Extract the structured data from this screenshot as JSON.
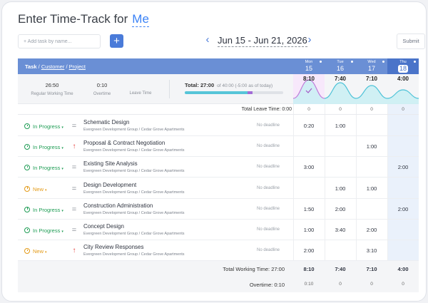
{
  "header": {
    "title": "Enter Time-Track for",
    "user": "Me"
  },
  "toolbar": {
    "add_placeholder": "+ Add task by name...",
    "add_button": "+",
    "prev": "‹",
    "next": "›",
    "date_range": "Jun 15 - Jun 21, 2026",
    "submit": "Submit"
  },
  "table_header": {
    "task": "Task",
    "sep": "/",
    "customer": "Customer",
    "project": "Project"
  },
  "days": [
    {
      "name": "Mon",
      "date": "15",
      "today": false
    },
    {
      "name": "Tue",
      "date": "16",
      "today": false
    },
    {
      "name": "Wed",
      "date": "17",
      "today": false
    },
    {
      "name": "Thu",
      "date": "18",
      "today": true
    }
  ],
  "summary": {
    "regular_value": "26:50",
    "regular_label": "Regular Working Time",
    "overtime_value": "0:10",
    "overtime_label": "Overtime",
    "leave_value": "",
    "leave_label": "Leave Time",
    "total_label": "Total: 27:00",
    "total_sub": "of 40:00 (-5:00 as of today)",
    "progress_primary": 0.64,
    "progress_secondary": 0.05,
    "day_totals": [
      "8:10",
      "7:40",
      "7:10",
      "4:00"
    ]
  },
  "leave_row": {
    "label": "Total Leave Time: 0:00",
    "values": [
      "0",
      "0",
      "0",
      "0"
    ]
  },
  "tasks": [
    {
      "status": "In Progress",
      "status_type": "prog",
      "priority": "=",
      "priority_type": "eq",
      "name": "Schematic Design",
      "project": "Evergreen Development Group / Cedar Grove Apartments",
      "deadline": "No deadline",
      "times": [
        "0:20",
        "1:00",
        "",
        ""
      ]
    },
    {
      "status": "In Progress",
      "status_type": "prog",
      "priority": "↑",
      "priority_type": "up",
      "name": "Proposal & Contract Negotiation",
      "project": "Evergreen Development Group / Cedar Grove Apartments",
      "deadline": "No deadline",
      "times": [
        "",
        "",
        "1:00",
        ""
      ]
    },
    {
      "status": "In Progress",
      "status_type": "prog",
      "priority": "=",
      "priority_type": "eq",
      "name": "Existing Site Analysis",
      "project": "Evergreen Development Group / Cedar Grove Apartments",
      "deadline": "No deadline",
      "times": [
        "3:00",
        "",
        "",
        "2:00"
      ]
    },
    {
      "status": "New",
      "status_type": "new",
      "priority": "=",
      "priority_type": "eq",
      "name": "Design Development",
      "project": "Evergreen Development Group / Cedar Grove Apartments",
      "deadline": "No deadline",
      "times": [
        "",
        "1:00",
        "1:00",
        ""
      ]
    },
    {
      "status": "In Progress",
      "status_type": "prog",
      "priority": "=",
      "priority_type": "eq",
      "name": "Construction Administration",
      "project": "Evergreen Development Group / Cedar Grove Apartments",
      "deadline": "No deadline",
      "times": [
        "1:50",
        "2:00",
        "",
        "2:00"
      ]
    },
    {
      "status": "In Progress",
      "status_type": "prog",
      "priority": "=",
      "priority_type": "eq",
      "name": "Concept Design",
      "project": "Evergreen Development Group / Cedar Grove Apartments",
      "deadline": "No deadline",
      "times": [
        "1:00",
        "3:40",
        "2:00",
        ""
      ]
    },
    {
      "status": "New",
      "status_type": "new",
      "priority": "↑",
      "priority_type": "up",
      "name": "City Review Responses",
      "project": "Evergreen Development Group / Cedar Grove Apartments",
      "deadline": "No deadline",
      "times": [
        "2:00",
        "",
        "3:10",
        ""
      ]
    }
  ],
  "footer": {
    "working_label": "Total Working Time: 27:00",
    "working_values": [
      "8:10",
      "7:40",
      "7:10",
      "4:00"
    ],
    "overtime_label": "Overtime: 0:10",
    "overtime_values": [
      "0:10",
      "0",
      "0",
      "0"
    ]
  },
  "colors": {
    "accent": "#4a7bd9",
    "header_bar": "#6a8fd5",
    "today": "#4a74c9",
    "in_progress": "#1f9d55",
    "new": "#e39b19",
    "priority_high": "#e53935"
  }
}
